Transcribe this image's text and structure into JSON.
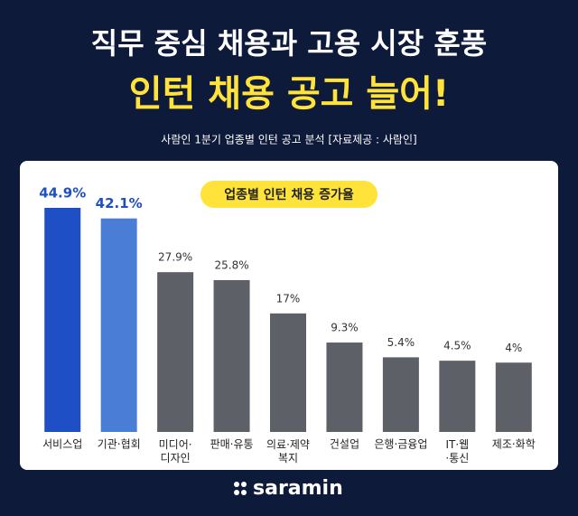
{
  "chart_data": {
    "type": "bar",
    "title": "직무 중심 채용과 고용 시장 훈풍",
    "headline": "인턴 채용 공고 늘어!",
    "subtitle": "사람인 1분기 업종별 인턴 공고 분석  [자료제공 : 사람인]",
    "chart_label": "업종별 인턴 채용 증가율",
    "categories": [
      "서비스업",
      "기관·협회",
      "미디어·\n디자인",
      "판매·유통",
      "의료·제약\n복지",
      "건설업",
      "은행·금융업",
      "IT·웹\n·통신",
      "제조·화학"
    ],
    "values": [
      44.9,
      42.1,
      27.9,
      25.8,
      17,
      9.3,
      5.4,
      4.5,
      4
    ],
    "value_labels": [
      "44.9%",
      "42.1%",
      "27.9%",
      "25.8%",
      "17%",
      "9.3%",
      "5.4%",
      "4.5%",
      "4%"
    ],
    "colors": [
      "#1f4fc4",
      "#4a7ed6",
      "#5e6068",
      "#5e6068",
      "#5e6068",
      "#5e6068",
      "#5e6068",
      "#5e6068",
      "#5e6068"
    ],
    "label_colors": [
      "#1f4fc4",
      "#1f4fc4",
      "#333333",
      "#333333",
      "#333333",
      "#333333",
      "#333333",
      "#333333",
      "#333333"
    ],
    "brand": "saramin"
  }
}
